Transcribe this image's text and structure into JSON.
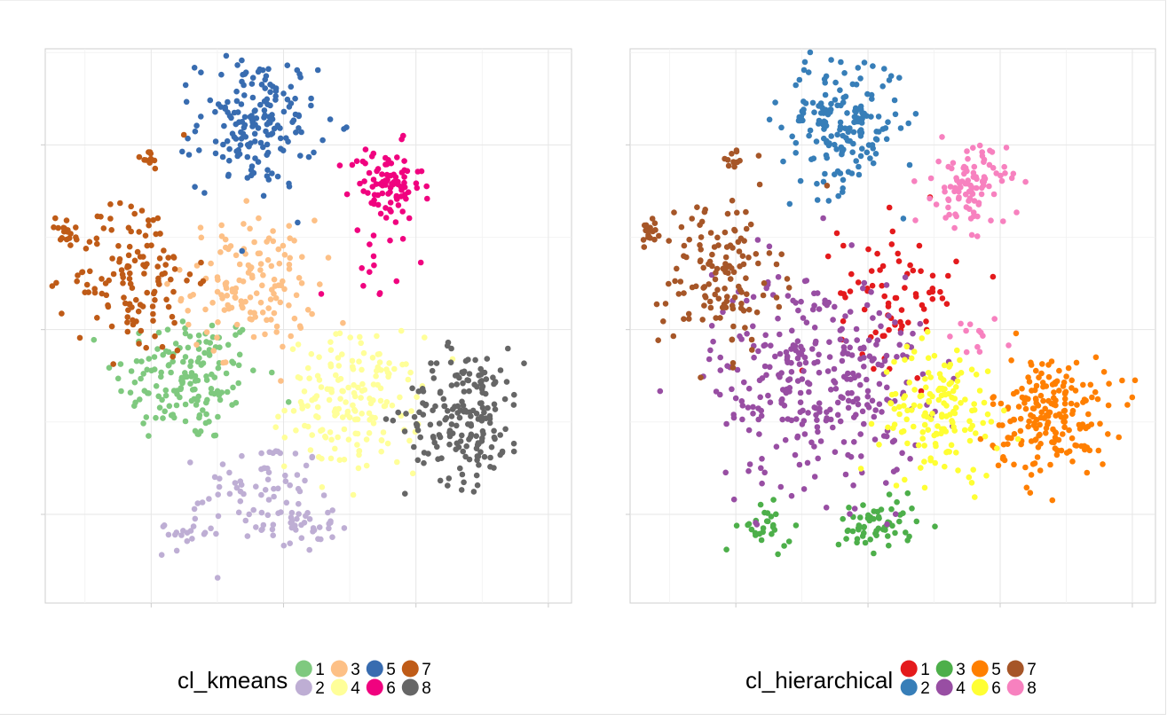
{
  "colors": {
    "kmeans": {
      "1": "#7fc97f",
      "2": "#beaed4",
      "3": "#fdc086",
      "4": "#ffff99",
      "5": "#386cb0",
      "6": "#f0027f",
      "7": "#bf5b17",
      "8": "#666666"
    },
    "hierarchical": {
      "1": "#e41a1c",
      "2": "#377eb8",
      "3": "#4daf4a",
      "4": "#984ea3",
      "5": "#ff7f00",
      "6": "#ffff33",
      "7": "#a65628",
      "8": "#f781bf"
    }
  },
  "chart_data": [
    {
      "type": "scatter",
      "title": "",
      "xlabel": "",
      "ylabel": "",
      "grid": true,
      "legend_position": "bottom",
      "legend": {
        "title": "cl_kmeans",
        "keys": [
          "1",
          "2",
          "3",
          "4",
          "5",
          "6",
          "7",
          "8"
        ],
        "palette": "kmeans"
      },
      "series": [
        {
          "name": "1",
          "clusters": [
            {
              "center": [
                -2.9,
                -1.3
              ],
              "spread": [
                1.1,
                0.9
              ],
              "n": 160
            }
          ]
        },
        {
          "name": "2",
          "clusters": [
            {
              "center": [
                -0.6,
                -4.2
              ],
              "spread": [
                0.9,
                0.6
              ],
              "n": 55
            },
            {
              "center": [
                -2.9,
                -5.4
              ],
              "spread": [
                0.5,
                0.3
              ],
              "n": 22
            },
            {
              "center": [
                0.4,
                -5.3
              ],
              "spread": [
                0.6,
                0.35
              ],
              "n": 45
            }
          ]
        },
        {
          "name": "3",
          "clusters": [
            {
              "center": [
                -1.0,
                1.2
              ],
              "spread": [
                1.0,
                0.9
              ],
              "n": 140
            }
          ]
        },
        {
          "name": "4",
          "clusters": [
            {
              "center": [
                2.1,
                -2.0
              ],
              "spread": [
                1.0,
                0.9
              ],
              "n": 170
            }
          ]
        },
        {
          "name": "5",
          "clusters": [
            {
              "center": [
                -0.8,
                5.6
              ],
              "spread": [
                0.9,
                0.9
              ],
              "n": 180
            }
          ]
        },
        {
          "name": "6",
          "clusters": [
            {
              "center": [
                3.1,
                3.9
              ],
              "spread": [
                0.55,
                0.55
              ],
              "n": 90
            },
            {
              "center": [
                2.6,
                1.5
              ],
              "spread": [
                0.7,
                0.5
              ],
              "n": 12
            }
          ]
        },
        {
          "name": "7",
          "clusters": [
            {
              "center": [
                -4.5,
                1.5
              ],
              "spread": [
                0.9,
                1.1
              ],
              "n": 135
            },
            {
              "center": [
                -6.6,
                2.6
              ],
              "spread": [
                0.25,
                0.2
              ],
              "n": 18
            },
            {
              "center": [
                -4.1,
                4.6
              ],
              "spread": [
                0.2,
                0.15
              ],
              "n": 10
            }
          ]
        },
        {
          "name": "8",
          "clusters": [
            {
              "center": [
                5.5,
                -2.3
              ],
              "spread": [
                0.9,
                0.9
              ],
              "n": 190
            }
          ]
        }
      ],
      "xlim": [
        -7.2,
        8.7
      ],
      "ylim": [
        -7.4,
        7.6
      ]
    },
    {
      "type": "scatter",
      "title": "",
      "xlabel": "",
      "ylabel": "",
      "grid": true,
      "legend_position": "bottom",
      "legend": {
        "title": "cl_hierarchical",
        "keys": [
          "1",
          "2",
          "3",
          "4",
          "5",
          "6",
          "7",
          "8"
        ],
        "palette": "hierarchical"
      },
      "series": [
        {
          "name": "1",
          "clusters": [
            {
              "center": [
                0.9,
                1.0
              ],
              "spread": [
                0.9,
                1.0
              ],
              "n": 75
            }
          ]
        },
        {
          "name": "2",
          "clusters": [
            {
              "center": [
                -0.8,
                5.6
              ],
              "spread": [
                0.9,
                0.9
              ],
              "n": 180
            }
          ]
        },
        {
          "name": "3",
          "clusters": [
            {
              "center": [
                -3.1,
                -5.4
              ],
              "spread": [
                0.4,
                0.3
              ],
              "n": 28
            },
            {
              "center": [
                0.3,
                -5.3
              ],
              "spread": [
                0.6,
                0.35
              ],
              "n": 60
            }
          ]
        },
        {
          "name": "4",
          "clusters": [
            {
              "center": [
                -1.5,
                -1.3
              ],
              "spread": [
                1.6,
                1.5
              ],
              "n": 330
            }
          ]
        },
        {
          "name": "5",
          "clusters": [
            {
              "center": [
                5.5,
                -2.3
              ],
              "spread": [
                0.9,
                0.8
              ],
              "n": 200
            }
          ]
        },
        {
          "name": "6",
          "clusters": [
            {
              "center": [
                2.2,
                -2.2
              ],
              "spread": [
                0.9,
                0.9
              ],
              "n": 150
            }
          ]
        },
        {
          "name": "7",
          "clusters": [
            {
              "center": [
                -4.5,
                1.5
              ],
              "spread": [
                0.9,
                1.1
              ],
              "n": 135
            },
            {
              "center": [
                -6.6,
                2.6
              ],
              "spread": [
                0.25,
                0.2
              ],
              "n": 18
            },
            {
              "center": [
                -4.1,
                4.6
              ],
              "spread": [
                0.2,
                0.15
              ],
              "n": 10
            }
          ]
        },
        {
          "name": "8",
          "clusters": [
            {
              "center": [
                3.1,
                3.9
              ],
              "spread": [
                0.55,
                0.55
              ],
              "n": 100
            },
            {
              "center": [
                3.3,
                -0.3
              ],
              "spread": [
                0.6,
                0.4
              ],
              "n": 12
            }
          ]
        }
      ],
      "xlim": [
        -7.2,
        8.7
      ],
      "ylim": [
        -7.4,
        7.6
      ]
    }
  ]
}
